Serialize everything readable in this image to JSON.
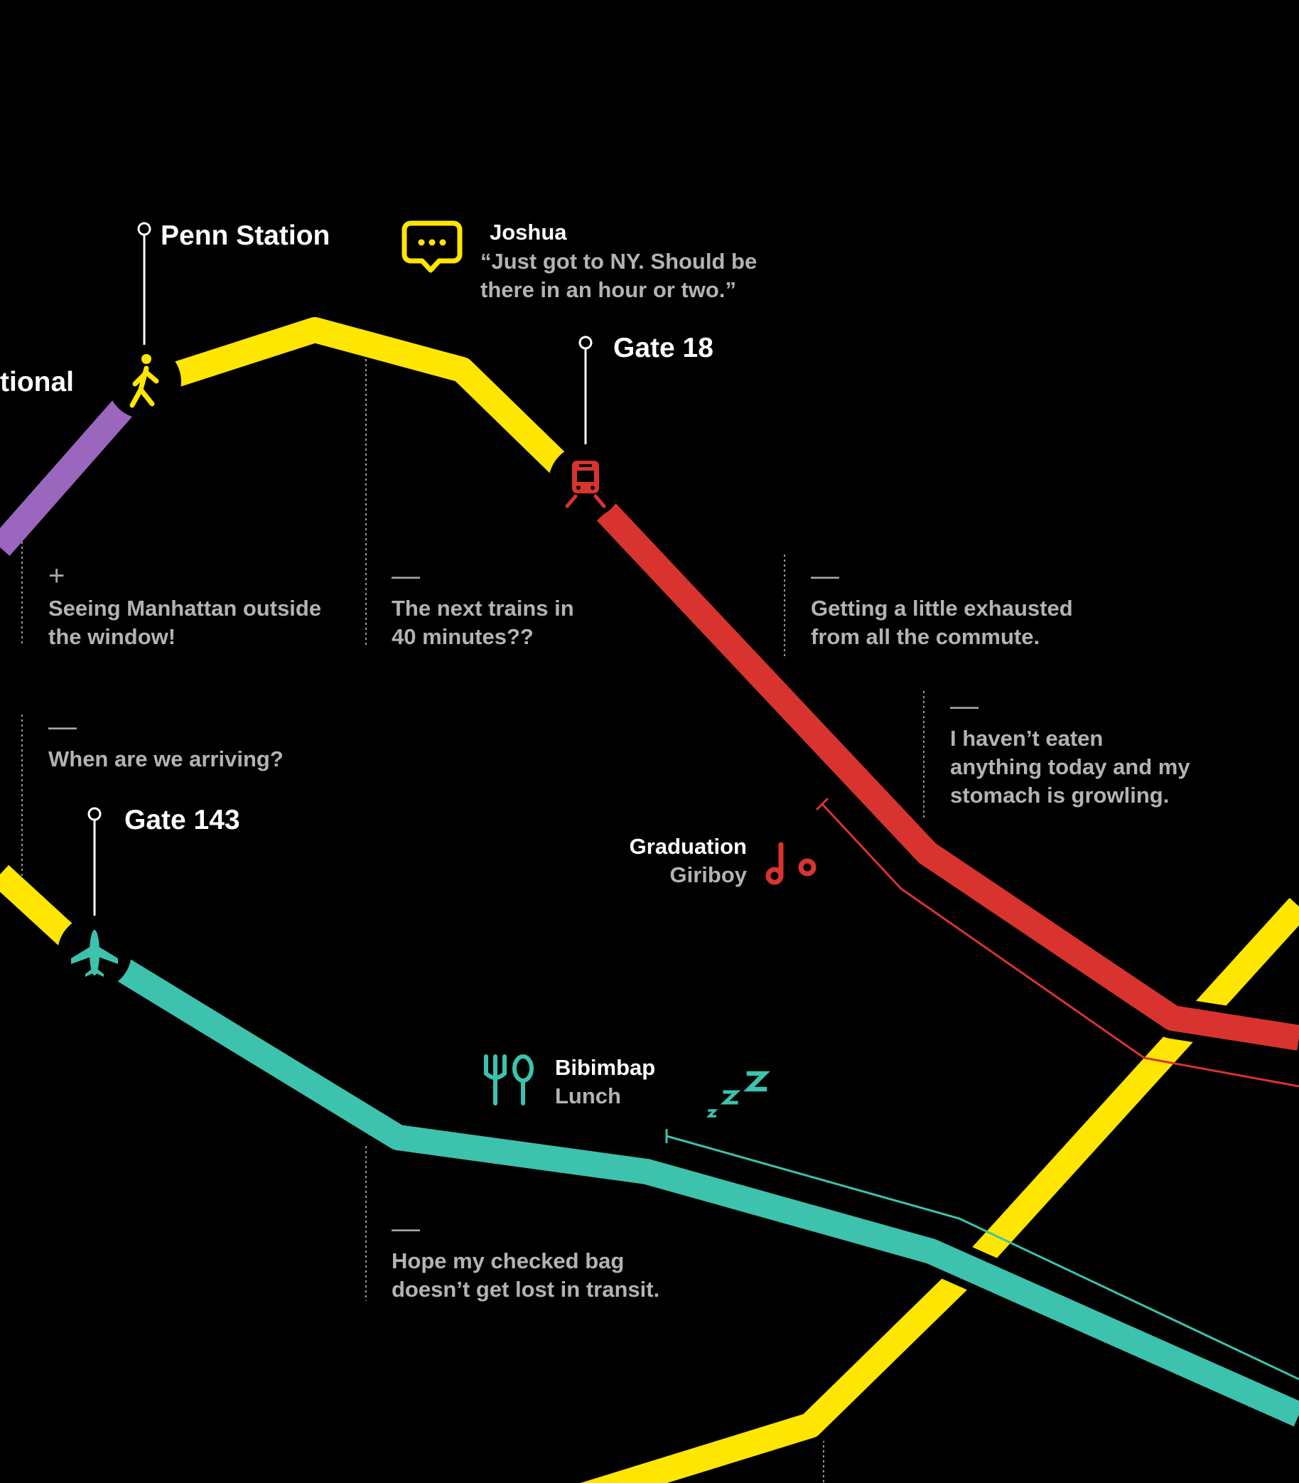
{
  "stops": {
    "penn_station": "Penn Station",
    "gate_18": "Gate 18",
    "gate_143": "Gate 143",
    "partial_left": "tional"
  },
  "message": {
    "sender": "Joshua",
    "text": "“Just got to NY. Should be\n there in an hour or two.”"
  },
  "song": {
    "title": "Graduation",
    "artist": "Giriboy"
  },
  "meal": {
    "dish": "Bibimbap",
    "type": "Lunch"
  },
  "notes": [
    {
      "mood": "+",
      "text": "Seeing Manhattan outside\nthe window!"
    },
    {
      "mood": "—",
      "text": "The next trains in\n40 minutes??"
    },
    {
      "mood": "—",
      "text": "Getting a little exhausted\nfrom all the commute."
    },
    {
      "mood": "—",
      "text": "I haven’t eaten\nanything today and my\nstomach is growling."
    },
    {
      "mood": "—",
      "text": "When are we arriving?"
    },
    {
      "mood": "—",
      "text": "Hope my checked bag\ndoesn’t get lost in transit."
    }
  ],
  "colors": {
    "yellow": "#FFE600",
    "purple": "#9B66BE",
    "red": "#D93330",
    "teal": "#3CC2AD",
    "background": "#000000"
  },
  "icons": {
    "walk": "walking-person-icon",
    "train": "train-icon",
    "plane": "airplane-icon",
    "chat": "chat-bubble-icon",
    "music": "music-note-icon",
    "fork_spoon": "fork-spoon-icon",
    "sleep": "sleep-zzz-icon"
  }
}
